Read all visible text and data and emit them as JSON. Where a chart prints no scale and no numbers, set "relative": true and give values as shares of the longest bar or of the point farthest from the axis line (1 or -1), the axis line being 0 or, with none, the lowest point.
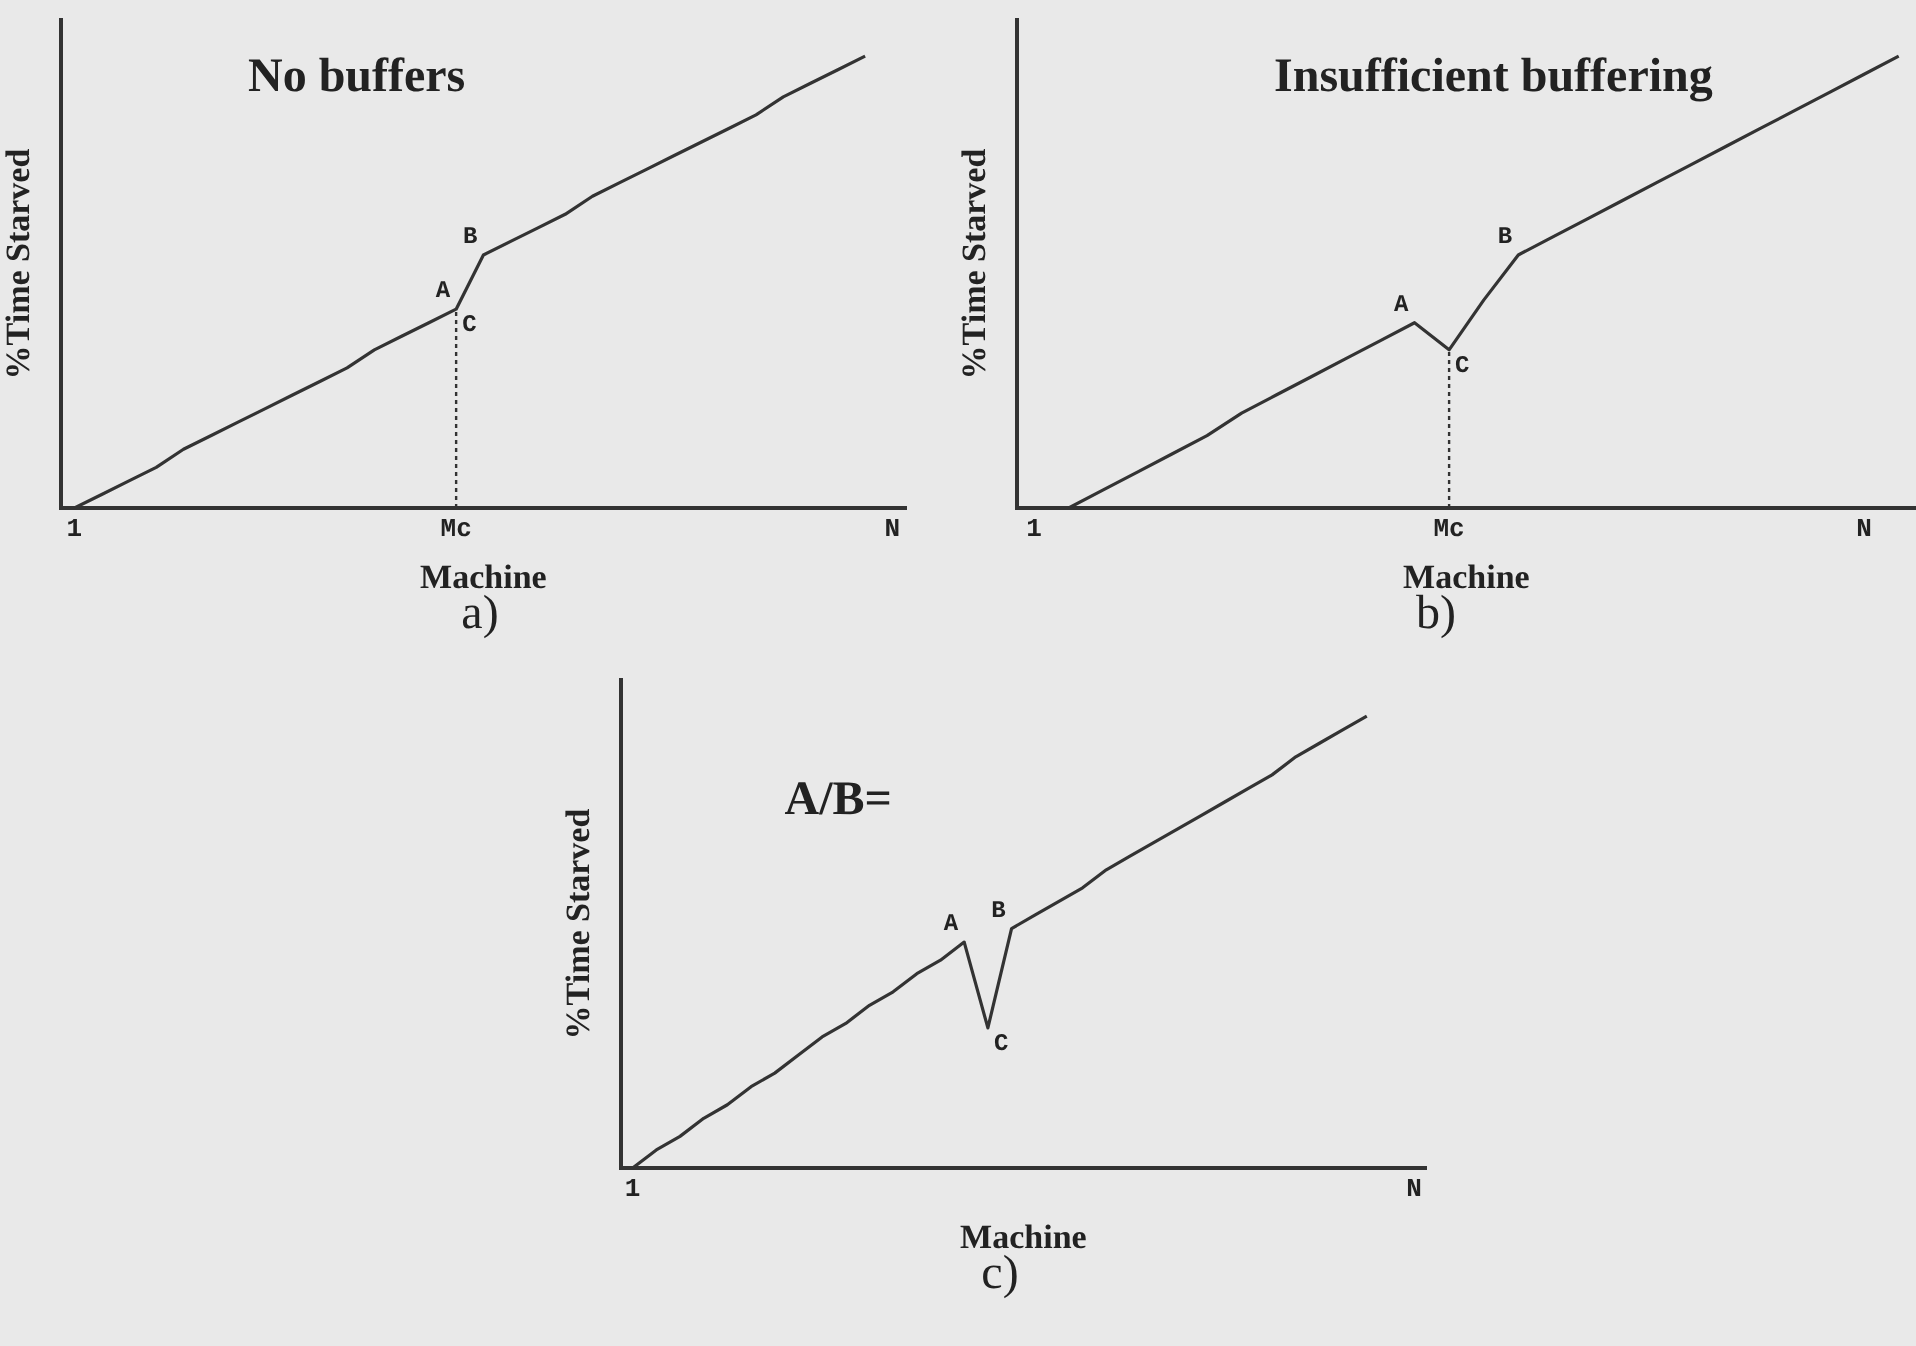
{
  "chart_data": [
    {
      "type": "line",
      "title": "No buffers",
      "xlabel": "Machine",
      "ylabel": "%Time Starved",
      "relative": true,
      "tick_labels": "x",
      "grid": false,
      "legend": false,
      "marker": "none",
      "line_style": "solid",
      "categories": [
        "1",
        null,
        null,
        null,
        null,
        null,
        null,
        null,
        null,
        null,
        null,
        null,
        null,
        null,
        "Mc",
        null,
        null,
        null,
        null,
        null,
        null,
        null,
        null,
        null,
        null,
        null,
        null,
        null,
        null,
        null,
        "N"
      ],
      "series": [
        {
          "color": "#333333",
          "values": [
            0,
            0.03,
            0.06,
            0.09,
            0.13,
            0.16,
            0.19,
            0.22,
            0.25,
            0.28,
            0.31,
            0.35,
            0.38,
            0.41,
            0.44,
            0.56,
            0.59,
            0.62,
            0.65,
            0.69,
            0.72,
            0.75,
            0.78,
            0.81,
            0.84,
            0.87,
            0.91,
            0.94,
            0.97,
            1,
            null
          ]
        }
      ],
      "ref_lines": [
        {
          "axis": "x",
          "value": "Mc",
          "line_style": "dotted",
          "color": "#333333"
        }
      ],
      "annotations": [
        {
          "text": "A",
          "x": "Mc",
          "y": 0.44
        },
        {
          "text": "C",
          "x": "Mc",
          "y": 0.44
        },
        "B",
        "a)"
      ]
    },
    {
      "type": "line",
      "title": "Insufficient buffering",
      "xlabel": "Machine",
      "ylabel": "%Time Starved",
      "relative": true,
      "tick_labels": "x",
      "grid": false,
      "legend": false,
      "marker": "none",
      "line_style": "solid",
      "categories": [
        "1",
        null,
        null,
        null,
        null,
        null,
        null,
        null,
        null,
        null,
        null,
        null,
        "Mc",
        null,
        null,
        null,
        null,
        null,
        null,
        null,
        null,
        null,
        null,
        null,
        "N",
        null
      ],
      "series": [
        {
          "color": "#333333",
          "values": [
            null,
            0,
            0.04,
            0.08,
            0.12,
            0.16,
            0.21,
            0.25,
            0.29,
            0.33,
            0.37,
            0.41,
            0.35,
            0.46,
            0.56,
            0.6,
            0.64,
            0.68,
            0.72,
            0.76,
            0.8,
            0.84,
            0.88,
            0.92,
            0.96,
            1
          ]
        }
      ],
      "ref_lines": [
        {
          "axis": "x",
          "value": "Mc",
          "line_style": "dotted",
          "color": "#333333"
        }
      ],
      "annotations": [
        "A",
        {
          "text": "C",
          "x": "Mc",
          "y": 0.35
        },
        "B",
        "b)"
      ]
    },
    {
      "type": "line",
      "title": "A/B=",
      "xlabel": "Machine",
      "ylabel": "%Time Starved",
      "relative": true,
      "tick_labels": "x",
      "grid": false,
      "legend": false,
      "marker": "none",
      "line_style": "solid",
      "categories": [
        "1",
        null,
        null,
        null,
        null,
        null,
        null,
        null,
        null,
        null,
        null,
        null,
        null,
        null,
        null,
        null,
        null,
        null,
        null,
        null,
        null,
        null,
        null,
        null,
        null,
        null,
        null,
        null,
        null,
        null,
        null,
        null,
        null,
        "N"
      ],
      "series": [
        {
          "color": "#333333",
          "values": [
            0,
            0.04,
            0.07,
            0.11,
            0.14,
            0.18,
            0.21,
            0.25,
            0.29,
            0.32,
            0.36,
            0.39,
            0.43,
            0.46,
            0.5,
            0.31,
            0.53,
            0.56,
            0.59,
            0.62,
            0.66,
            0.69,
            0.72,
            0.75,
            0.78,
            0.81,
            0.84,
            0.87,
            0.91,
            0.94,
            0.97,
            1,
            null,
            null
          ]
        }
      ],
      "annotations": [
        "A",
        "C",
        "B",
        "c)"
      ]
    }
  ]
}
